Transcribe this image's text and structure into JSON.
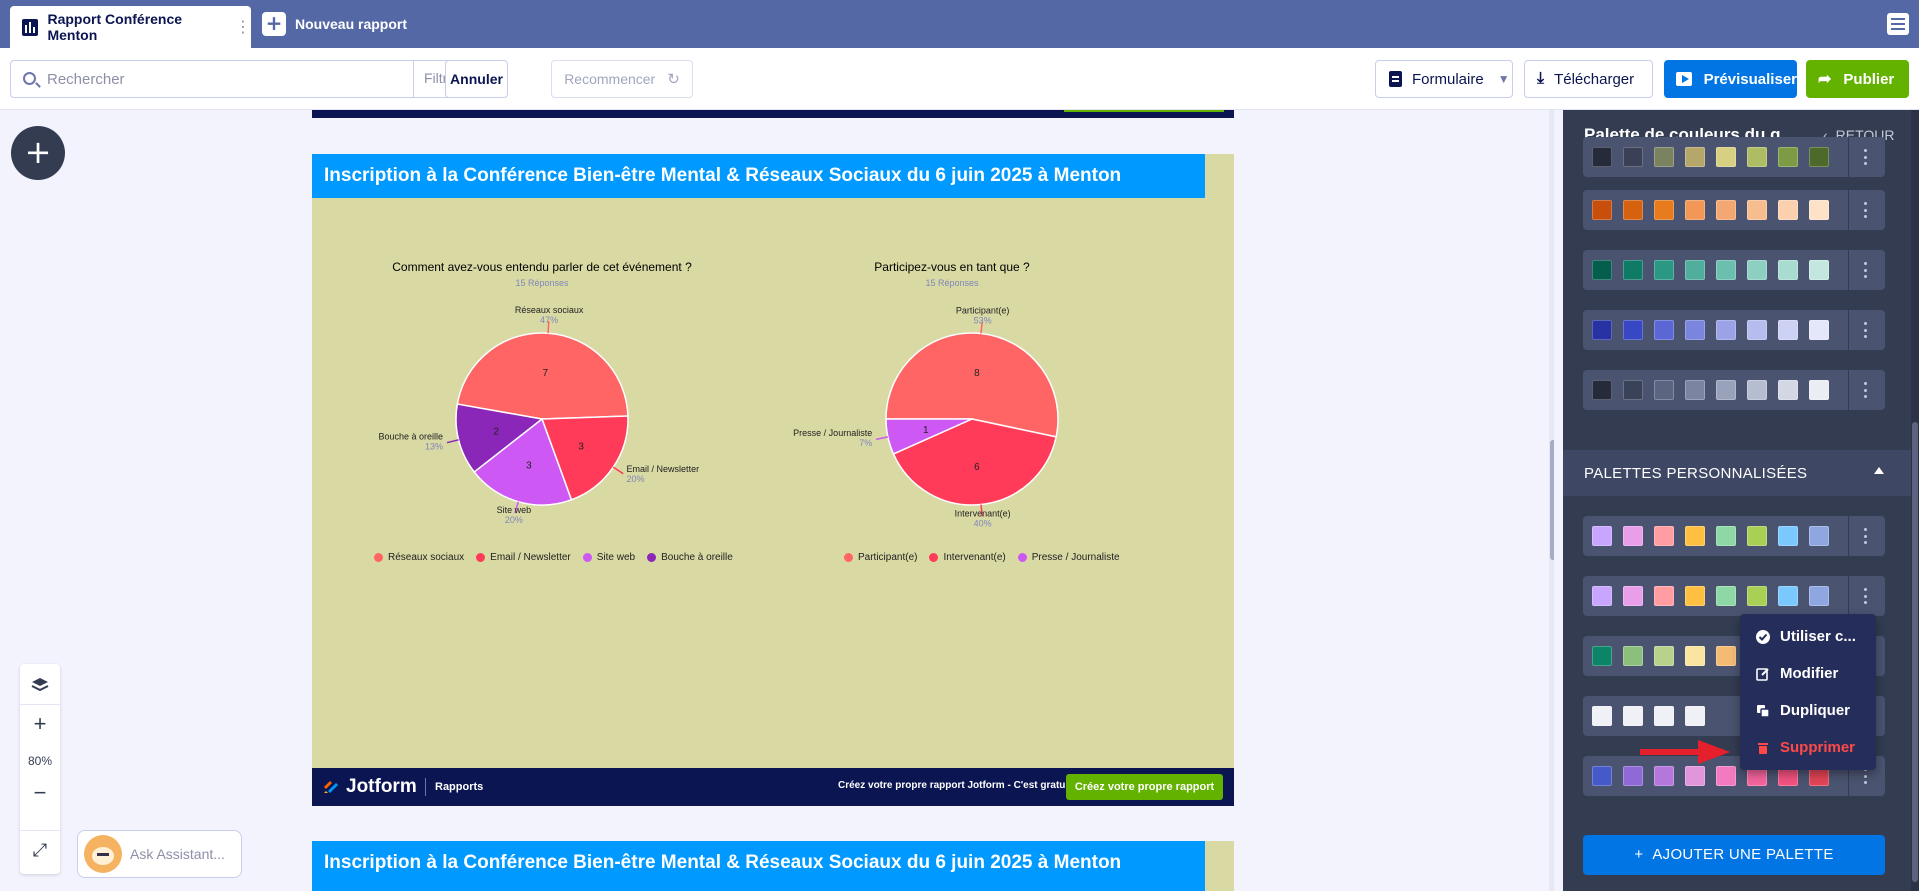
{
  "tabs": {
    "active_label": "Rapport Conférence Menton",
    "new_label": "Nouveau rapport"
  },
  "toolbar": {
    "search_placeholder": "Rechercher",
    "filter_label": "Filtre",
    "undo_label": "Annuler",
    "redo_label": "Recommencer",
    "form_label": "Formulaire",
    "download_label": "Télécharger",
    "preview_label": "Prévisualiser",
    "publish_label": "Publier"
  },
  "report": {
    "page_title": "Inscription à la Conférence Bien-être Mental & Réseaux Sociaux du 6 juin 2025 à Menton",
    "page2_title": "Inscription à la Conférence Bien-être Mental & Réseaux Sociaux du 6 juin 2025 à Menton",
    "background_color": "#d9d9a4",
    "header_color": "#0099ff",
    "footer": {
      "brand": "Jotform",
      "section": "Rapports",
      "cta_text": "Créez votre propre rapport Jotform - C'est gratuit",
      "cta_button": "Créez votre propre rapport"
    }
  },
  "chart_data": [
    {
      "type": "pie",
      "title": "Comment avez-vous entendu parler de cet événement ?",
      "subtitle": "15 Réponses",
      "categories": [
        "Réseaux sociaux",
        "Email / Newsletter",
        "Site web",
        "Bouche à oreille"
      ],
      "values": [
        7,
        3,
        3,
        2
      ],
      "percent_labels": [
        "47%",
        "20%",
        "20%",
        "13%"
      ],
      "colors": [
        "#ff6565",
        "#ff3b59",
        "#cd58f4",
        "#8b27b8"
      ],
      "legend": "bottom"
    },
    {
      "type": "pie",
      "title": "Participez-vous en tant que ?",
      "subtitle": "15 Réponses",
      "categories": [
        "Participant(e)",
        "Intervenant(e)",
        "Presse / Journaliste"
      ],
      "values": [
        8,
        6,
        1
      ],
      "percent_labels": [
        "53%",
        "40%",
        "7%"
      ],
      "colors": [
        "#ff6565",
        "#ff3b59",
        "#cd58f4"
      ],
      "legend": "bottom"
    }
  ],
  "zoom": {
    "level": "80%"
  },
  "assistant": {
    "label": "Ask Assistant..."
  },
  "panel": {
    "title": "Palette de couleurs du graphique",
    "back_label": "RETOUR",
    "custom_section_label": "PALETTES PERSONNALISÉES",
    "add_palette_label": "AJOUTER UNE PALETTE",
    "preset_palettes": [
      [
        "#252b3b",
        "#3a4156",
        "#7b8260",
        "#b5a66a",
        "#d7cf82",
        "#aebc63",
        "#7d9a45",
        "#4d6a2a"
      ],
      [
        "#c74f0b",
        "#d6620f",
        "#e77b1d",
        "#f29756",
        "#f4a772",
        "#f8bd8f",
        "#fbd0ae",
        "#fde2c8"
      ],
      [
        "#055d4e",
        "#0f7b67",
        "#2a9882",
        "#4fae9c",
        "#6cbfae",
        "#8dcfc1",
        "#a9dcd1",
        "#c3e7df"
      ],
      [
        "#2733a3",
        "#3847c4",
        "#5a67d4",
        "#7a85de",
        "#9ba2e6",
        "#b6bcee",
        "#cdd1f4",
        "#e4e6fa"
      ],
      [
        "#252b3b",
        "#3a4259",
        "#5c6580",
        "#7b84a0",
        "#9aa2bb",
        "#b7bdd1",
        "#d3d7e4",
        "#ebedf4"
      ]
    ],
    "custom_palettes": [
      [
        "#c8a6ff",
        "#e89ee9",
        "#ff9da3",
        "#ffc042",
        "#8ed8a6",
        "#a8d054",
        "#7bc8ff",
        "#8fa7e0"
      ],
      [
        "#c8a6ff",
        "#e89ee9",
        "#ff9da3",
        "#ffc042",
        "#8ed8a6",
        "#a8d054",
        "#7bc8ff",
        "#8fa7e0"
      ],
      [
        "#0c8467",
        "#8dbf7c",
        "#b9d28b",
        "#f9e59f",
        "#f4bb73",
        "#ee9a53"
      ],
      [
        "#f0f1f6",
        "#f0f1f6",
        "#f0f1f6",
        "#f0f1f6"
      ],
      [
        "#4559c9",
        "#8f6ad6",
        "#b478dc",
        "#e195db",
        "#f27bc0",
        "#f4649d",
        "#f2527f",
        "#e24456"
      ]
    ]
  },
  "context_menu": {
    "items": [
      "Utiliser c...",
      "Modifier",
      "Dupliquer",
      "Supprimer"
    ],
    "danger_color": "#ff4948"
  }
}
